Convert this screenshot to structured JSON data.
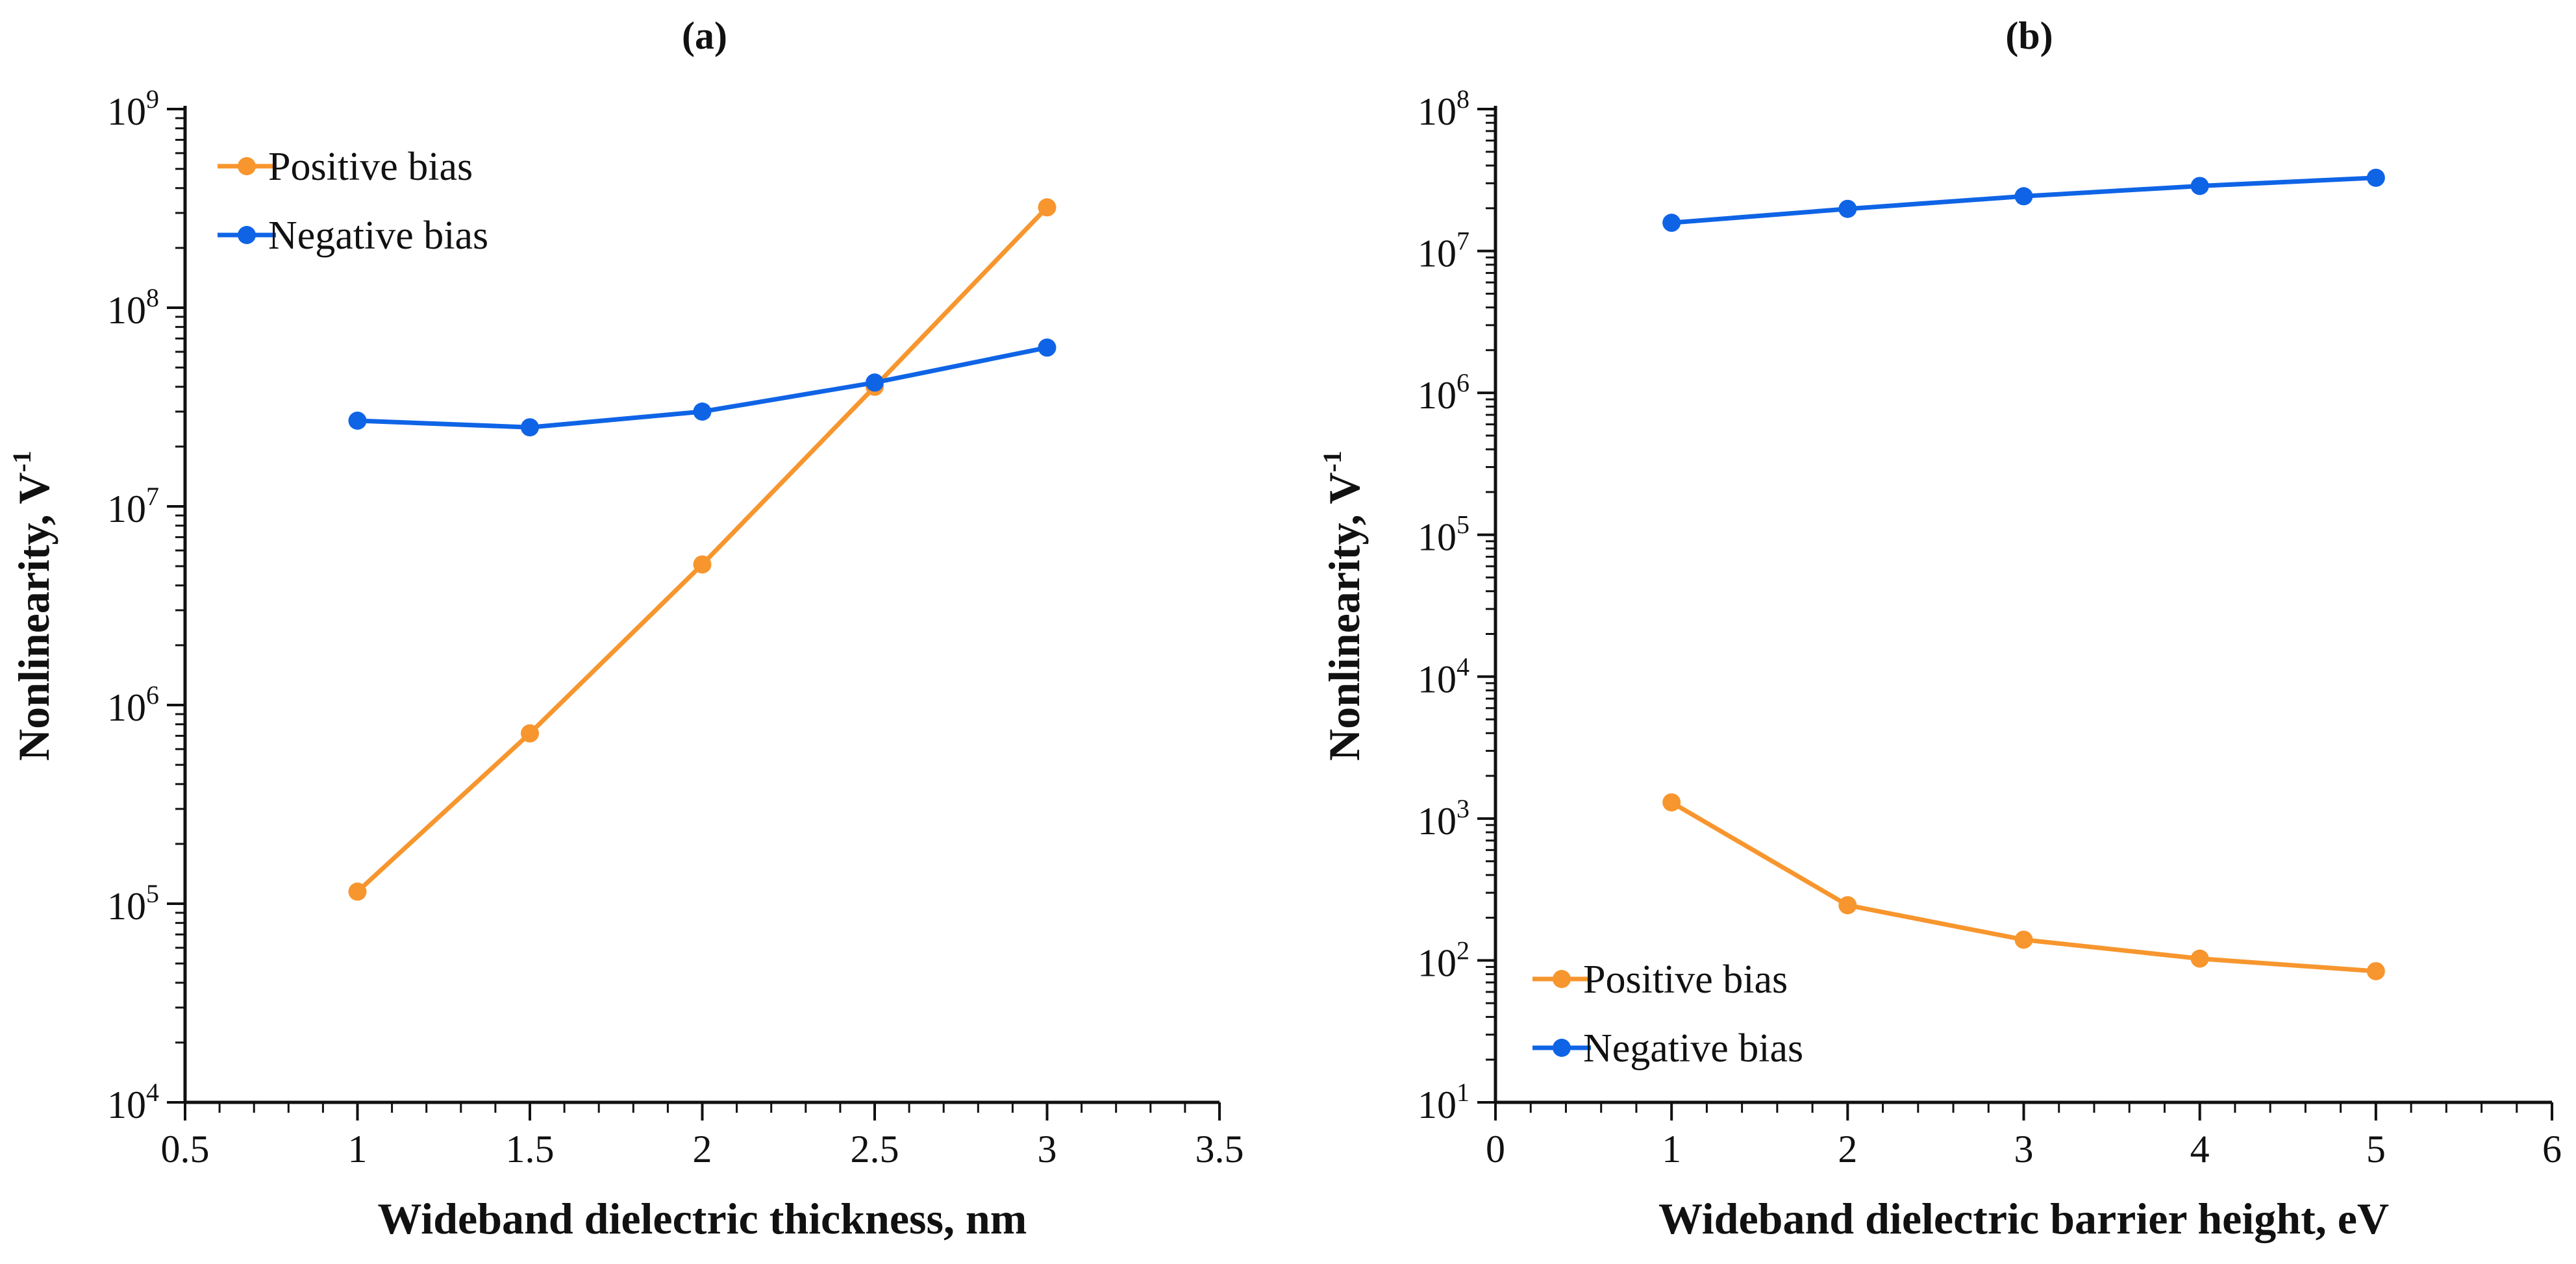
{
  "chart_data": [
    {
      "panel": "(a)",
      "type": "line",
      "title": "(a)",
      "xlabel": "Wideband dielectric thickness, nm",
      "ylabel_main": "Nonlinearity,  V",
      "ylabel_sup": "-1",
      "xlim": [
        0.5,
        3.5
      ],
      "ylim_log10": [
        4,
        9
      ],
      "x_ticks": [
        "0.5",
        "1",
        "1.5",
        "2",
        "2.5",
        "3",
        "3.5"
      ],
      "y_ticks": [
        {
          "base": "10",
          "exp": "4"
        },
        {
          "base": "10",
          "exp": "5"
        },
        {
          "base": "10",
          "exp": "6"
        },
        {
          "base": "10",
          "exp": "7"
        },
        {
          "base": "10",
          "exp": "8"
        },
        {
          "base": "10",
          "exp": "9"
        }
      ],
      "legend_position": "top-left",
      "series": [
        {
          "name": "Positive bias",
          "color": "#F7962E",
          "x": [
            1,
            1.5,
            2,
            2.5,
            3
          ],
          "y": [
            115000,
            720000,
            5100000,
            40000000,
            320000000
          ]
        },
        {
          "name": "Negative bias",
          "color": "#0F64E6",
          "x": [
            1,
            1.5,
            2,
            2.5,
            3
          ],
          "y": [
            27000000,
            25000000,
            30000000,
            42000000,
            63000000
          ]
        }
      ]
    },
    {
      "panel": "(b)",
      "type": "line",
      "title": "(b)",
      "xlabel": "Wideband dielectric barrier height, eV",
      "ylabel_main": "Nonlinearity,  V",
      "ylabel_sup": "-1",
      "xlim": [
        0,
        6
      ],
      "ylim_log10": [
        1,
        8
      ],
      "x_ticks": [
        "0",
        "1",
        "2",
        "3",
        "4",
        "5",
        "6"
      ],
      "y_ticks": [
        {
          "base": "10",
          "exp": "1"
        },
        {
          "base": "10",
          "exp": "2"
        },
        {
          "base": "10",
          "exp": "3"
        },
        {
          "base": "10",
          "exp": "4"
        },
        {
          "base": "10",
          "exp": "5"
        },
        {
          "base": "10",
          "exp": "6"
        },
        {
          "base": "10",
          "exp": "7"
        },
        {
          "base": "10",
          "exp": "8"
        }
      ],
      "legend_position": "bottom-left",
      "series": [
        {
          "name": "Positive bias",
          "color": "#F7962E",
          "x": [
            1,
            2,
            3,
            4,
            5
          ],
          "y": [
            1300,
            245,
            140,
            103,
            84
          ]
        },
        {
          "name": "Negative bias",
          "color": "#0F64E6",
          "x": [
            1,
            2,
            3,
            4,
            5
          ],
          "y": [
            15800000,
            19800000,
            24300000,
            28700000,
            32800000
          ]
        }
      ]
    }
  ]
}
